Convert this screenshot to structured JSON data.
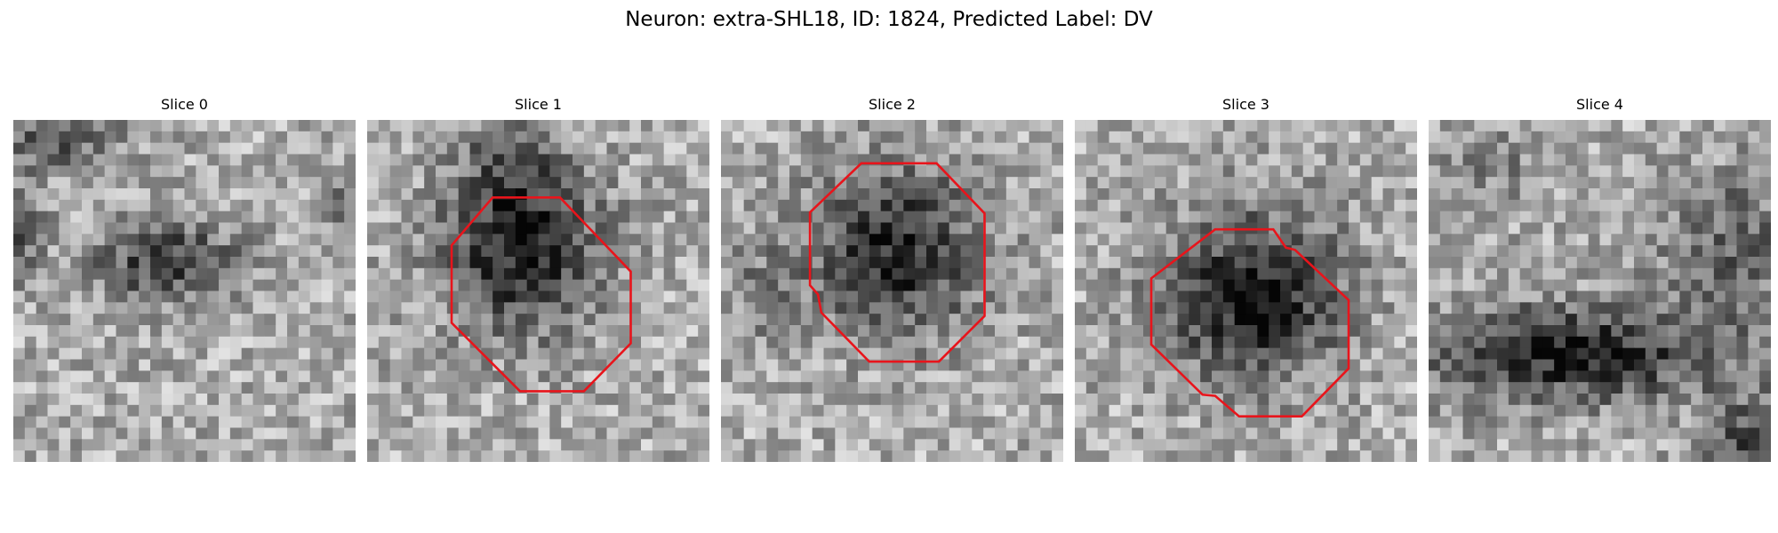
{
  "figure": {
    "title": "Neuron: extra-SHL18, ID: 1824, Predicted Label: DV"
  },
  "panels": [
    {
      "title": "Slice 0",
      "roi": false
    },
    {
      "title": "Slice 1",
      "roi": true
    },
    {
      "title": "Slice 2",
      "roi": true
    },
    {
      "title": "Slice 3",
      "roi": true
    },
    {
      "title": "Slice 4",
      "roi": false
    }
  ],
  "colors": {
    "roi_outline": "#e8141b",
    "background": "#ffffff"
  },
  "image": {
    "colormap": "gray",
    "grid": "30x30 pixels per slice"
  }
}
